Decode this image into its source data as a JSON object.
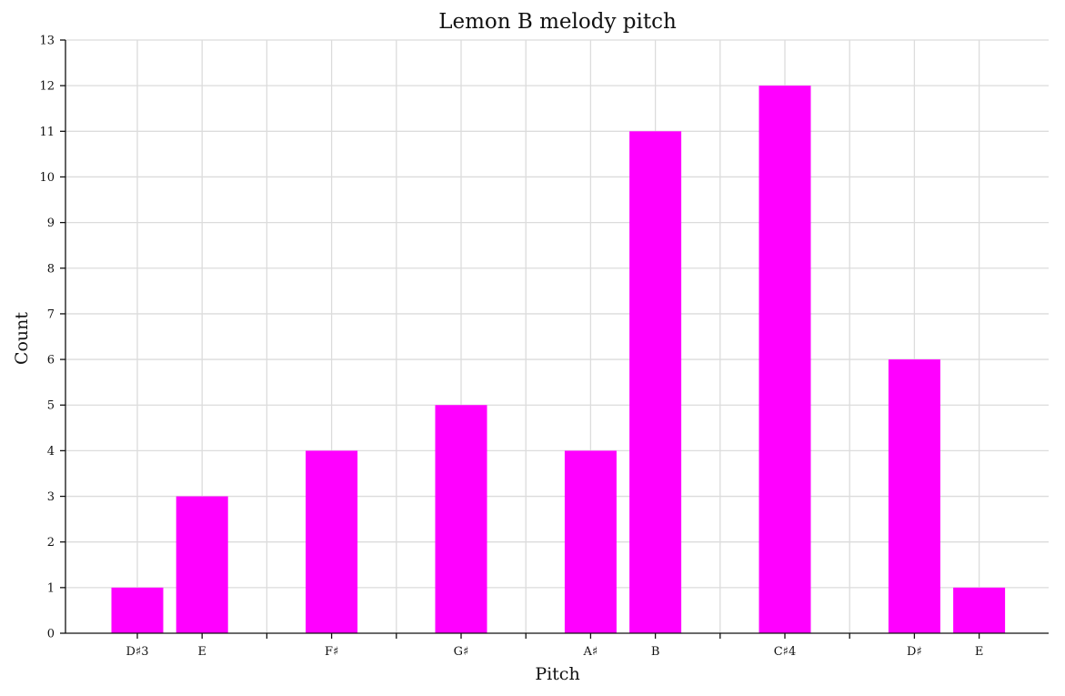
{
  "chart_data": {
    "type": "bar",
    "title": "Lemon B melody pitch",
    "xlabel": "Pitch",
    "ylabel": "Count",
    "ylim": [
      0,
      13
    ],
    "yticks": [
      0,
      1,
      2,
      3,
      4,
      5,
      6,
      7,
      8,
      9,
      10,
      11,
      12,
      13
    ],
    "grid": true,
    "bar_color": "#ff00ff",
    "categories": [
      "D♯3",
      "E",
      "F♯",
      "G♯",
      "A♯",
      "B",
      "C♯4",
      "D♯",
      "E"
    ],
    "semitone_positions": [
      1,
      2,
      4,
      6,
      8,
      9,
      11,
      13,
      14
    ],
    "values": [
      1,
      3,
      4,
      5,
      4,
      11,
      12,
      6,
      1
    ]
  }
}
